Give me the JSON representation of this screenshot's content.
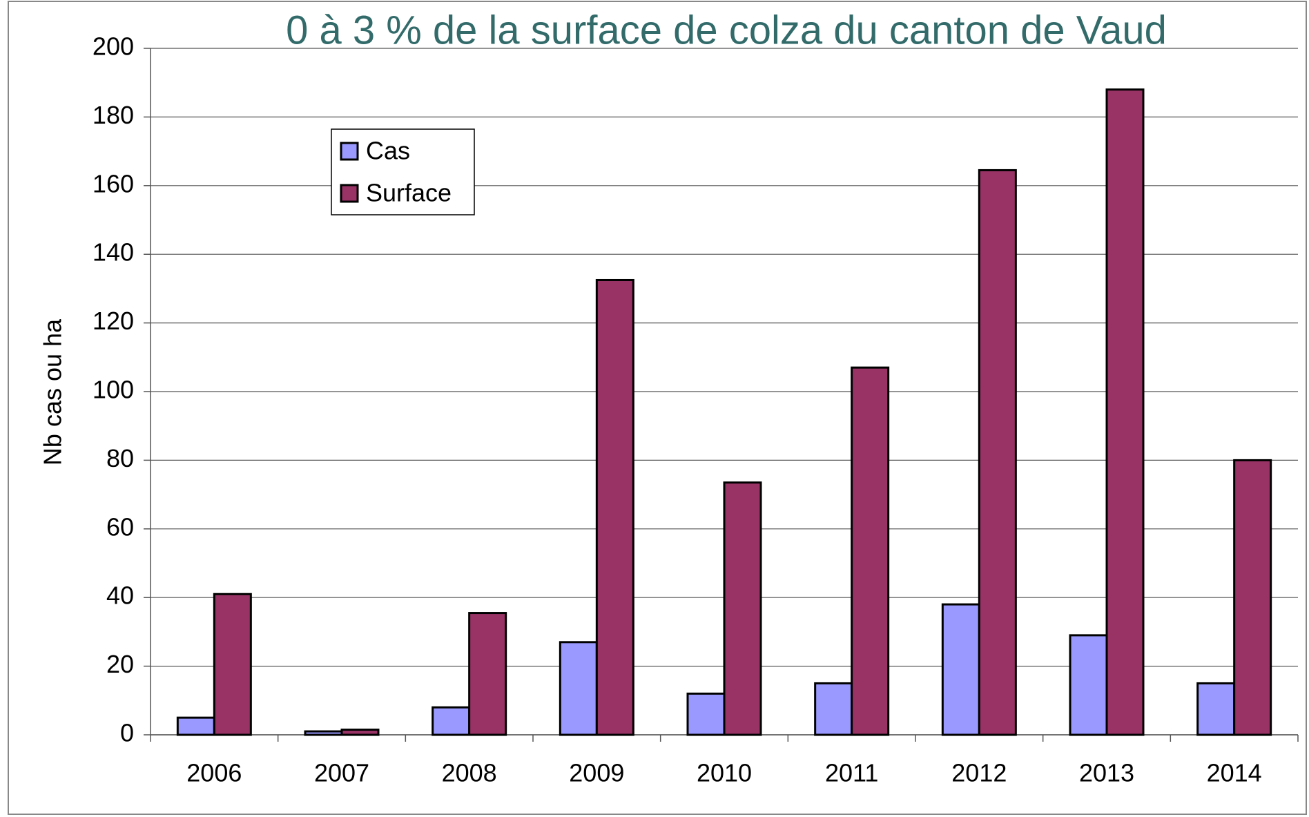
{
  "chart_data": {
    "type": "bar",
    "title": "0 à 3 % de la surface de colza du canton de Vaud",
    "y_label": "Nb cas ou ha",
    "categories": [
      "2006",
      "2007",
      "2008",
      "2009",
      "2010",
      "2011",
      "2012",
      "2013",
      "2014"
    ],
    "series": [
      {
        "name": "Cas",
        "color": "#9999ff",
        "values": [
          5,
          1,
          8,
          27,
          12,
          15,
          38,
          29,
          15
        ]
      },
      {
        "name": "Surface",
        "color": "#993366",
        "values": [
          41,
          1.5,
          35.5,
          132.5,
          73.5,
          107,
          164.5,
          188,
          80
        ]
      }
    ],
    "ylim": [
      0,
      200
    ],
    "yticks": [
      0,
      20,
      40,
      60,
      80,
      100,
      120,
      140,
      160,
      180,
      200
    ],
    "grid": true,
    "legend": "upper left"
  }
}
